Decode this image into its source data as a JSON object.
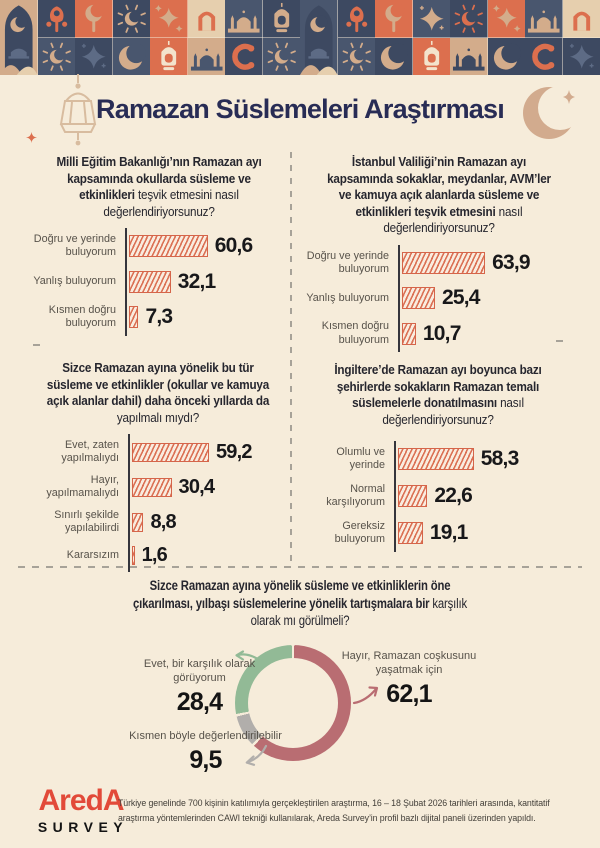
{
  "header": {
    "title": "Ramazan Süslemeleri Araştırması"
  },
  "chart_data": [
    {
      "type": "bar",
      "title_bold": "Milli Eğitim Bakanlığı’nın Ramazan ayı kapsamında okullarda süsleme ve etkinlikleri",
      "title_regular": " teşvik etmesini nasıl değerlendiriyorsunuz?",
      "categories": [
        "Doğru ve yerinde buluyorum",
        "Yanlış buluyorum",
        "Kısmen doğru buluyorum"
      ],
      "values": [
        60.6,
        32.1,
        7.3
      ],
      "value_labels": [
        "60,6",
        "32,1",
        "7,3"
      ],
      "xlim": [
        0,
        70
      ],
      "bar_style": "coral-hatched"
    },
    {
      "type": "bar",
      "title_bold": "İstanbul Valiliği’nin Ramazan ayı kapsamında sokaklar, meydanlar, AVM’ler ve kamuya açık alanlarda süsleme ve etkinlikleri teşvik etmesini",
      "title_regular": " nasıl değerlendiriyorsunuz?",
      "categories": [
        "Doğru ve yerinde buluyorum",
        "Yanlış buluyorum",
        "Kısmen doğru buluyorum"
      ],
      "values": [
        63.9,
        25.4,
        10.7
      ],
      "value_labels": [
        "63,9",
        "25,4",
        "10,7"
      ],
      "xlim": [
        0,
        70
      ],
      "bar_style": "coral-hatched"
    },
    {
      "type": "bar",
      "title_bold": "Sizce Ramazan ayına yönelik bu tür süsleme ve etkinlikler (okullar ve kamuya açık alanlar dahil) daha önceki yıllarda da",
      "title_regular": " yapılmalı mıydı?",
      "categories": [
        "Evet, zaten yapılmalıydı",
        "Hayır, yapılmamalıydı",
        "Sınırlı şekilde yapılabilirdi",
        "Kararsızım"
      ],
      "values": [
        59.2,
        30.4,
        8.8,
        1.6
      ],
      "value_labels": [
        "59,2",
        "30,4",
        "8,8",
        "1,6"
      ],
      "xlim": [
        0,
        70
      ],
      "bar_style": "coral-hatched"
    },
    {
      "type": "bar",
      "title_bold": "İngiltere’de Ramazan ayı boyunca bazı şehirlerde sokakların Ramazan temalı süslemelerle donatılmasını",
      "title_regular": " nasıl değerlendiriyorsunuz?",
      "categories": [
        "Olumlu ve yerinde",
        "Normal karşılıyorum",
        "Gereksiz buluyorum"
      ],
      "values": [
        58.3,
        22.6,
        19.1
      ],
      "value_labels": [
        "58,3",
        "22,6",
        "19,1"
      ],
      "xlim": [
        0,
        70
      ],
      "bar_style": "coral-hatched"
    },
    {
      "type": "donut",
      "title_bold": "Sizce Ramazan ayına yönelik süsleme ve etkinliklerin öne çıkarılması, yılbaşı süslemelerine yönelik tartışmalara bir",
      "title_regular": " karşılık olarak mı görülmeli?",
      "start": "top",
      "direction": "clockwise",
      "segments": [
        {
          "label": "Hayır, Ramazan coşkusunu yaşatmak için",
          "value": 62.1,
          "display": "62,1",
          "color": "#b96d72"
        },
        {
          "label": "Kısmen böyle değerlendirilebilir",
          "value": 9.5,
          "display": "9,5",
          "color": "#b1aeab"
        },
        {
          "label": "Evet, bir karşılık olarak görüyorum",
          "value": 28.4,
          "display": "28,4",
          "color": "#92ba96"
        }
      ]
    }
  ],
  "footer": {
    "logo_line1": "AredA",
    "logo_line2": "SURVEY",
    "text": "Türkiye genelinde 700 kişinin katılımıyla gerçekleştirilen araştırma, 16 – 18 Şubat 2026 tarihleri arasında, kantitatif araştırma yöntemlerinden CAWI tekniği kullanılarak, Areda Survey’in profil bazlı dijital paneli üzerinden yapıldı."
  },
  "colors": {
    "background": "#f6ecda",
    "title_navy": "#282c55",
    "bar_border": "#d5654a",
    "bar_hatch": "#db7154",
    "donut_no": "#b96d72",
    "donut_partial": "#b1aeab",
    "donut_yes": "#92ba96",
    "logo_red": "#e24a39",
    "divider_gray": "#a7a298"
  },
  "decor": {
    "palette": {
      "navy": "#3d4961",
      "slate": "#49566e",
      "orange": "#dc6f4e",
      "tan": "#d3ac8b",
      "cream": "#f3e3cc",
      "sand": "#e6cfae",
      "steel": "#5d6b85"
    },
    "tiles": [
      {
        "kind": "arch-mosque",
        "bg": "tan"
      },
      {
        "top": {
          "m": "tulip-ornament",
          "fg": "orange",
          "bg": "navy"
        },
        "bottom": {
          "m": "sunburst-crescent",
          "fg": "tan",
          "bg": "slate"
        }
      },
      {
        "top": {
          "m": "crescent-tree",
          "fg": "tan",
          "bg": "orange"
        },
        "bottom": {
          "m": "four-point-star",
          "fg": "steel",
          "bg": "navy"
        }
      },
      {
        "top": {
          "m": "sunburst-crescent",
          "fg": "tan",
          "bg": "navy"
        },
        "bottom": {
          "m": "crescent-moon",
          "fg": "tan",
          "bg": "slate"
        }
      },
      {
        "top": {
          "m": "stars-cluster",
          "fg": "tan",
          "bg": "orange"
        },
        "bottom": {
          "m": "lantern",
          "fg": "cream",
          "bg": "orange"
        }
      },
      {
        "top": {
          "m": "arch-window",
          "fg": "orange",
          "bg": "sand"
        },
        "bottom": {
          "m": "mosque",
          "fg": "slate",
          "bg": "tan"
        }
      },
      {
        "top": {
          "m": "mosque",
          "fg": "tan",
          "bg": "slate"
        },
        "bottom": {
          "m": "swirl-ornament",
          "fg": "orange",
          "bg": "navy"
        }
      },
      {
        "top": {
          "m": "lantern",
          "fg": "tan",
          "bg": "navy"
        },
        "bottom": {
          "m": "sunburst-crescent",
          "fg": "tan",
          "bg": "slate"
        }
      },
      {
        "kind": "arch-mosque",
        "bg": "slate"
      },
      {
        "top": {
          "m": "tulip-ornament",
          "fg": "orange",
          "bg": "navy"
        },
        "bottom": {
          "m": "sunburst-crescent",
          "fg": "tan",
          "bg": "slate"
        }
      },
      {
        "top": {
          "m": "crescent-tree",
          "fg": "tan",
          "bg": "orange"
        },
        "bottom": {
          "m": "crescent-moon",
          "fg": "tan",
          "bg": "navy"
        }
      },
      {
        "top": {
          "m": "four-point-star",
          "fg": "tan",
          "bg": "slate"
        },
        "bottom": {
          "m": "lantern",
          "fg": "cream",
          "bg": "orange"
        }
      },
      {
        "top": {
          "m": "sunburst-crescent",
          "fg": "orange",
          "bg": "navy"
        },
        "bottom": {
          "m": "mosque",
          "fg": "navy",
          "bg": "tan"
        }
      },
      {
        "top": {
          "m": "stars-cluster",
          "fg": "tan",
          "bg": "orange"
        },
        "bottom": {
          "m": "crescent-moon",
          "fg": "tan",
          "bg": "navy"
        }
      },
      {
        "top": {
          "m": "mosque",
          "fg": "tan",
          "bg": "slate"
        },
        "bottom": {
          "m": "swirl-ornament",
          "fg": "orange",
          "bg": "navy"
        }
      },
      {
        "top": {
          "m": "arch-window",
          "fg": "orange",
          "bg": "sand"
        },
        "bottom": {
          "m": "four-point-star",
          "fg": "steel",
          "bg": "navy"
        }
      }
    ]
  }
}
